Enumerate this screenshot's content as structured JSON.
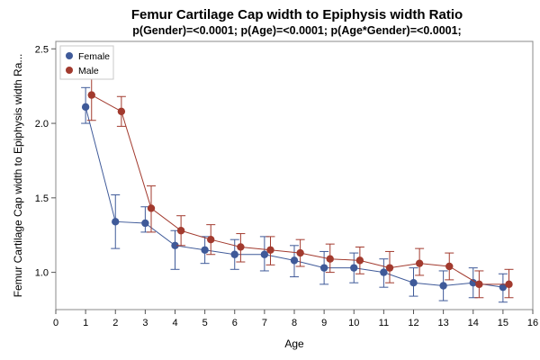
{
  "chart_data": {
    "type": "line",
    "title": "Femur Cartilage Cap width to Epiphysis width Ratio",
    "subtitle": "p(Gender)=<0.0001; p(Age)=<0.0001; p(Age*Gender)=<0.0001;",
    "xlabel": "Age",
    "ylabel": "Femur Cartilage Cap width to Epiphysis width Ra...",
    "xlim": [
      0,
      16
    ],
    "ylim": [
      0.75,
      2.55
    ],
    "xticks": [
      0,
      1,
      2,
      3,
      4,
      5,
      6,
      7,
      8,
      9,
      10,
      11,
      12,
      13,
      14,
      15,
      16
    ],
    "yticks": [
      1.0,
      1.5,
      2.0,
      2.5
    ],
    "ytick_labels": [
      "1.0",
      "1.5",
      "2.0",
      "2.5"
    ],
    "grid": false,
    "legend_position": "top-left",
    "series": [
      {
        "name": "Female",
        "color": "#3F5A99",
        "x": [
          1,
          2,
          3,
          4,
          5,
          6,
          7,
          8,
          9,
          10,
          11,
          12,
          13,
          14,
          15
        ],
        "y": [
          2.11,
          1.34,
          1.33,
          1.18,
          1.15,
          1.12,
          1.12,
          1.08,
          1.03,
          1.03,
          1.0,
          0.93,
          0.91,
          0.93,
          0.9
        ],
        "err_low": [
          2.0,
          1.16,
          1.27,
          1.02,
          1.06,
          1.02,
          1.01,
          0.97,
          0.92,
          0.93,
          0.9,
          0.84,
          0.81,
          0.83,
          0.8
        ],
        "err_high": [
          2.24,
          1.52,
          1.44,
          1.28,
          1.24,
          1.22,
          1.24,
          1.18,
          1.14,
          1.13,
          1.09,
          1.03,
          1.01,
          1.03,
          0.99
        ]
      },
      {
        "name": "Male",
        "color": "#A23A2E",
        "x": [
          1.2,
          2.2,
          3.2,
          4.2,
          5.2,
          6.2,
          7.2,
          8.2,
          9.2,
          10.2,
          11.2,
          12.2,
          13.2,
          14.2,
          15.2
        ],
        "y": [
          2.19,
          2.08,
          1.43,
          1.28,
          1.22,
          1.17,
          1.15,
          1.13,
          1.09,
          1.08,
          1.03,
          1.06,
          1.04,
          0.92,
          0.92
        ],
        "err_low": [
          2.02,
          1.98,
          1.27,
          1.18,
          1.12,
          1.07,
          1.05,
          1.04,
          1.0,
          0.99,
          0.93,
          0.98,
          0.95,
          0.83,
          0.83
        ],
        "err_high": [
          2.36,
          2.18,
          1.58,
          1.38,
          1.32,
          1.26,
          1.24,
          1.22,
          1.19,
          1.17,
          1.14,
          1.16,
          1.13,
          1.01,
          1.02
        ]
      }
    ]
  }
}
